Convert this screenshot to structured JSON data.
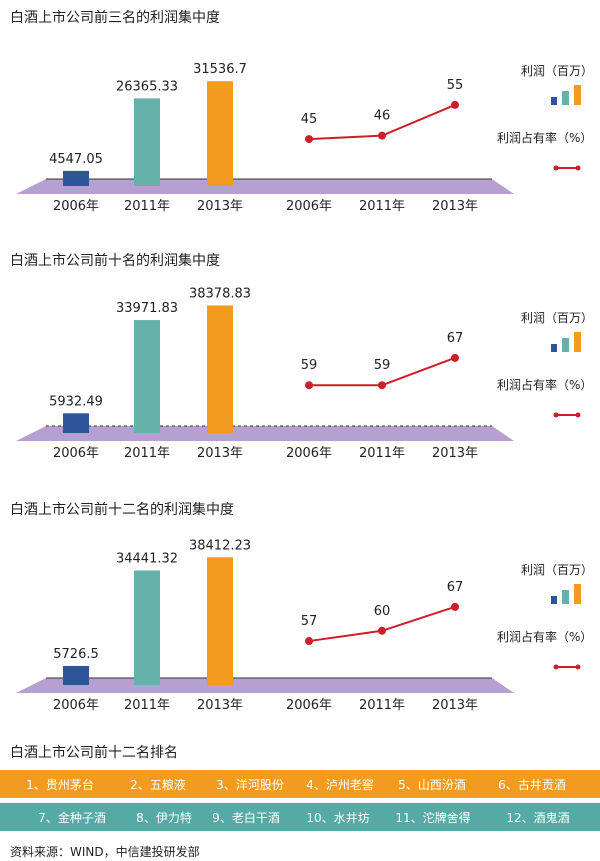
{
  "chart_data": [
    {
      "type": "bar",
      "title": "白酒上市公司前三名的利润集中度",
      "categories": [
        "2006年",
        "2011年",
        "2013年"
      ],
      "series": [
        {
          "name": "利润（百万）",
          "values": [
            4547.05,
            26365.33,
            31536.7
          ]
        }
      ],
      "value_labels": [
        "4547.05",
        "26365.33",
        "31536.7"
      ],
      "line": {
        "name": "利润占有率（%）",
        "categories": [
          "2006年",
          "2011年",
          "2013年"
        ],
        "values": [
          45,
          46,
          55
        ]
      }
    },
    {
      "type": "bar",
      "title": "白酒上市公司前十名的利润集中度",
      "categories": [
        "2006年",
        "2011年",
        "2013年"
      ],
      "series": [
        {
          "name": "利润（百万）",
          "values": [
            5932.49,
            33971.83,
            38378.83
          ]
        }
      ],
      "value_labels": [
        "5932.49",
        "33971.83",
        "38378.83"
      ],
      "line": {
        "name": "利润占有率（%）",
        "categories": [
          "2006年",
          "2011年",
          "2013年"
        ],
        "values": [
          59,
          59,
          67
        ]
      }
    },
    {
      "type": "bar",
      "title": "白酒上市公司前十二名的利润集中度",
      "categories": [
        "2006年",
        "2011年",
        "2013年"
      ],
      "series": [
        {
          "name": "利润（百万）",
          "values": [
            5726.5,
            34441.32,
            38412.23
          ]
        }
      ],
      "value_labels": [
        "5726.5",
        "34441.32",
        "38412.23"
      ],
      "line": {
        "name": "利润占有率（%）",
        "categories": [
          "2006年",
          "2011年",
          "2013年"
        ],
        "values": [
          57,
          60,
          67
        ]
      }
    }
  ],
  "legend": {
    "profit": "利润（百万）",
    "share": "利润占有率（%）"
  },
  "colors": {
    "bar_2006": "#2e5597",
    "bar_2011": "#66b1aa",
    "bar_2013": "#f29b1f",
    "line": "#cc1f2a",
    "floor": "#a98fc9",
    "band_top": "#f29b1f",
    "band_bottom": "#56aaa5"
  },
  "ranking": {
    "title": "白酒上市公司前十二名排名",
    "row1": [
      "1、贵州茅台",
      "2、五粮液",
      "3、洋河股份",
      "4、泸州老窖",
      "5、山西汾酒",
      "6、古井贡酒"
    ],
    "row2": [
      "7、金种子酒",
      "8、伊力特",
      "9、老白干酒",
      "10、水井坊",
      "11、沱牌舍得",
      "12、酒鬼酒"
    ]
  },
  "source": "资料来源：WIND，中信建投研发部"
}
